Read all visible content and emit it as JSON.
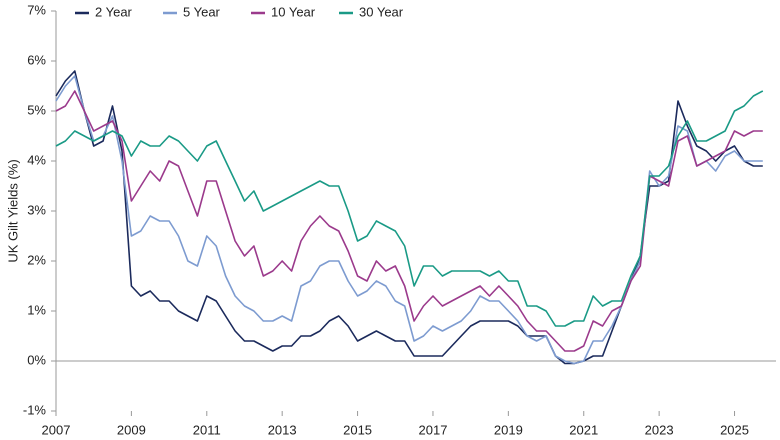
{
  "chart_data": {
    "type": "line",
    "y_label": "UK Gilt Yields (%)",
    "x": [
      2007,
      2007.25,
      2007.5,
      2007.75,
      2008,
      2008.25,
      2008.5,
      2008.75,
      2009,
      2009.25,
      2009.5,
      2009.75,
      2010,
      2010.25,
      2010.5,
      2010.75,
      2011,
      2011.25,
      2011.5,
      2011.75,
      2012,
      2012.25,
      2012.5,
      2012.75,
      2013,
      2013.25,
      2013.5,
      2013.75,
      2014,
      2014.25,
      2014.5,
      2014.75,
      2015,
      2015.25,
      2015.5,
      2015.75,
      2016,
      2016.25,
      2016.5,
      2016.75,
      2017,
      2017.25,
      2017.5,
      2017.75,
      2018,
      2018.25,
      2018.5,
      2018.75,
      2019,
      2019.25,
      2019.5,
      2019.75,
      2020,
      2020.25,
      2020.5,
      2020.75,
      2021,
      2021.25,
      2021.5,
      2021.75,
      2022,
      2022.25,
      2022.5,
      2022.75,
      2023,
      2023.25,
      2023.5,
      2023.75,
      2024,
      2024.25,
      2024.5,
      2024.75,
      2025,
      2025.25,
      2025.5,
      2025.75
    ],
    "series": [
      {
        "name": "2 Year",
        "color": "#1b2a5c",
        "values": [
          5.3,
          5.6,
          5.8,
          5.0,
          4.3,
          4.4,
          5.1,
          4.2,
          1.5,
          1.3,
          1.4,
          1.2,
          1.2,
          1.0,
          0.9,
          0.8,
          1.3,
          1.2,
          0.9,
          0.6,
          0.4,
          0.4,
          0.3,
          0.2,
          0.3,
          0.3,
          0.5,
          0.5,
          0.6,
          0.8,
          0.9,
          0.7,
          0.4,
          0.5,
          0.6,
          0.5,
          0.4,
          0.4,
          0.1,
          0.1,
          0.1,
          0.1,
          0.3,
          0.5,
          0.7,
          0.8,
          0.8,
          0.8,
          0.8,
          0.7,
          0.5,
          0.5,
          0.5,
          0.1,
          -0.05,
          -0.05,
          0.0,
          0.1,
          0.1,
          0.6,
          1.1,
          1.6,
          2.1,
          3.5,
          3.5,
          3.6,
          5.2,
          4.7,
          4.3,
          4.2,
          4.0,
          4.2,
          4.3,
          4.0,
          3.9,
          3.9
        ]
      },
      {
        "name": "5 Year",
        "color": "#7d9bd0",
        "values": [
          5.2,
          5.5,
          5.7,
          5.0,
          4.4,
          4.5,
          4.9,
          4.0,
          2.5,
          2.6,
          2.9,
          2.8,
          2.8,
          2.5,
          2.0,
          1.9,
          2.5,
          2.3,
          1.7,
          1.3,
          1.1,
          1.0,
          0.8,
          0.8,
          0.9,
          0.8,
          1.5,
          1.6,
          1.9,
          2.0,
          2.0,
          1.6,
          1.3,
          1.4,
          1.6,
          1.5,
          1.2,
          1.1,
          0.4,
          0.5,
          0.7,
          0.6,
          0.7,
          0.8,
          1.0,
          1.3,
          1.2,
          1.2,
          1.0,
          0.8,
          0.5,
          0.4,
          0.5,
          0.1,
          0.0,
          -0.05,
          0.0,
          0.4,
          0.4,
          0.7,
          1.1,
          1.6,
          2.0,
          3.8,
          3.5,
          3.7,
          4.7,
          4.6,
          3.9,
          4.0,
          3.8,
          4.1,
          4.2,
          4.0,
          4.0,
          4.0
        ]
      },
      {
        "name": "10 Year",
        "color": "#9b3a8c",
        "values": [
          5.0,
          5.1,
          5.4,
          5.0,
          4.6,
          4.7,
          4.8,
          4.4,
          3.2,
          3.5,
          3.8,
          3.6,
          4.0,
          3.9,
          3.4,
          2.9,
          3.6,
          3.6,
          3.0,
          2.4,
          2.1,
          2.3,
          1.7,
          1.8,
          2.0,
          1.8,
          2.4,
          2.7,
          2.9,
          2.7,
          2.6,
          2.2,
          1.7,
          1.6,
          2.0,
          1.8,
          1.9,
          1.5,
          0.8,
          1.1,
          1.3,
          1.1,
          1.2,
          1.3,
          1.4,
          1.5,
          1.3,
          1.5,
          1.3,
          1.1,
          0.8,
          0.6,
          0.6,
          0.4,
          0.2,
          0.2,
          0.3,
          0.8,
          0.7,
          1.0,
          1.1,
          1.6,
          1.9,
          3.7,
          3.6,
          3.5,
          4.4,
          4.5,
          3.9,
          4.0,
          4.1,
          4.2,
          4.6,
          4.5,
          4.6,
          4.6
        ]
      },
      {
        "name": "30 Year",
        "color": "#1a9a86",
        "values": [
          4.3,
          4.4,
          4.6,
          4.5,
          4.4,
          4.5,
          4.6,
          4.5,
          4.1,
          4.4,
          4.3,
          4.3,
          4.5,
          4.4,
          4.2,
          4.0,
          4.3,
          4.4,
          4.0,
          3.6,
          3.2,
          3.4,
          3.0,
          3.1,
          3.2,
          3.3,
          3.4,
          3.5,
          3.6,
          3.5,
          3.5,
          3.0,
          2.4,
          2.5,
          2.8,
          2.7,
          2.6,
          2.3,
          1.5,
          1.9,
          1.9,
          1.7,
          1.8,
          1.8,
          1.8,
          1.8,
          1.7,
          1.8,
          1.6,
          1.6,
          1.1,
          1.1,
          1.0,
          0.7,
          0.7,
          0.8,
          0.8,
          1.3,
          1.1,
          1.2,
          1.2,
          1.7,
          2.1,
          3.7,
          3.7,
          3.9,
          4.5,
          4.8,
          4.4,
          4.4,
          4.5,
          4.6,
          5.0,
          5.1,
          5.3,
          5.4
        ]
      }
    ],
    "xlim": [
      2007,
      2026.1
    ],
    "xticks": [
      2007,
      2009,
      2011,
      2013,
      2015,
      2017,
      2019,
      2021,
      2023,
      2025
    ],
    "ylim": [
      -1,
      7
    ],
    "yticks": [
      {
        "value": -1,
        "label": "-1%"
      },
      {
        "value": 0,
        "label": "0%"
      },
      {
        "value": 1,
        "label": "1%"
      },
      {
        "value": 2,
        "label": "2%"
      },
      {
        "value": 3,
        "label": "3%"
      },
      {
        "value": 4,
        "label": "4%"
      },
      {
        "value": 5,
        "label": "5%"
      },
      {
        "value": 6,
        "label": "6%"
      },
      {
        "value": 7,
        "label": "7%"
      }
    ],
    "legend": "top-left"
  }
}
